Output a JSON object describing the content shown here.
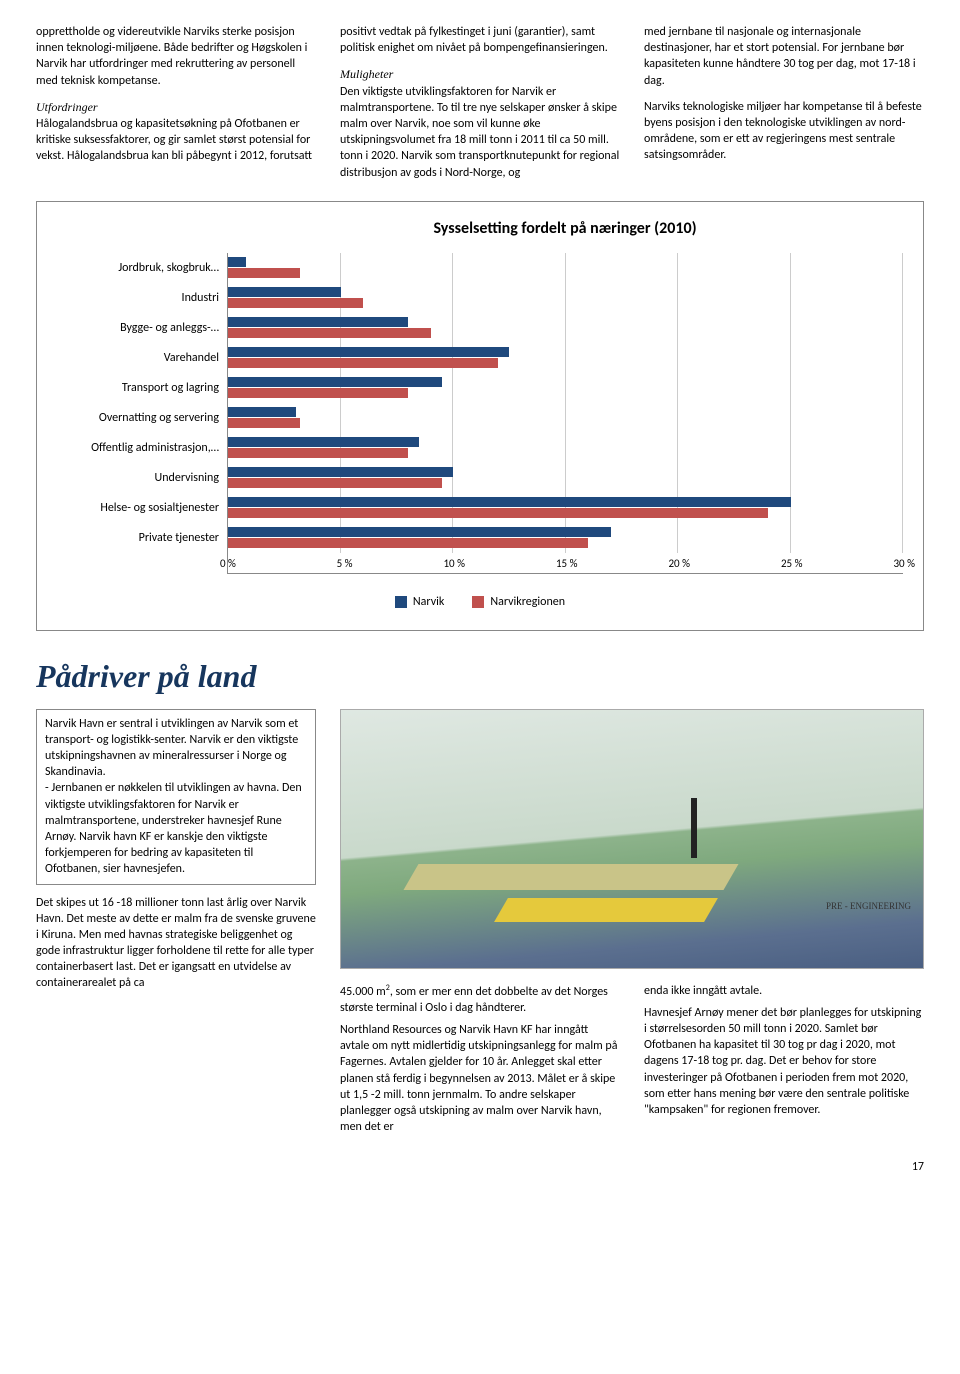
{
  "top_columns": {
    "col1": {
      "p1": "opprettholde og videreutvikle Narviks sterke posisjon innen teknologi-miljøene. Både bedrifter og Høgskolen i Narvik har utfordringer med rekruttering av personell med teknisk kompetanse.",
      "h1": "Utfordringer",
      "p2": "Hålogalandsbrua og kapasitetsøkning på Ofotbanen er kritiske suksessfaktorer, og gir samlet størst potensial for vekst. Hålogalandsbrua kan bli påbegynt i 2012, forutsatt"
    },
    "col2": {
      "p1": "positivt vedtak på fylkestinget i juni (garantier), samt politisk enighet om nivået på bompengefinansieringen.",
      "h1": "Muligheter",
      "p2": "Den viktigste utviklingsfaktoren for Narvik er malmtransportene. To til tre nye selskaper ønsker å skipe malm over Narvik, noe som vil kunne øke utskipningsvolumet fra 18 mill tonn i 2011 til ca 50 mill. tonn i 2020. Narvik som transportknutepunkt for regional distribusjon av gods i Nord-Norge, og"
    },
    "col3": {
      "p1": "med jernbane til nasjonale og internasjonale destinasjoner, har et stort potensial. For jernbane bør kapasiteten kunne håndtere 30 tog per dag, mot 17-18 i dag.",
      "p2": "Narviks teknologiske miljøer har kompetanse til å befeste byens posisjon i den teknologiske utviklingen av nord-områdene, som er ett av regjeringens mest sentrale satsingsområder."
    }
  },
  "chart": {
    "title": "Sysselsetting fordelt på næringer (2010)",
    "categories": [
      "Jordbruk, skogbruk…",
      "Industri",
      "Bygge- og anleggs-…",
      "Varehandel",
      "Transport og lagring",
      "Overnatting og servering",
      "Offentlig administrasjon,…",
      "Undervisning",
      "Helse- og sosialtjenester",
      "Private tjenester"
    ],
    "series": [
      {
        "name": "Narvik",
        "color": "#1f497d",
        "values": [
          0.8,
          5,
          8,
          12.5,
          9.5,
          3,
          8.5,
          10,
          25,
          17
        ]
      },
      {
        "name": "Narvikregionen",
        "color": "#c0504d",
        "values": [
          3.2,
          6,
          9,
          12,
          8,
          3.2,
          8,
          9.5,
          24,
          16
        ]
      }
    ],
    "xmax": 30,
    "xtick_step": 5,
    "xtick_labels": [
      "0 %",
      "5 %",
      "10 %",
      "15 %",
      "20 %",
      "25 %",
      "30 %"
    ]
  },
  "section_title": "Pådriver på land",
  "lower_left": {
    "box": "Narvik Havn er sentral i utviklingen av Narvik som et transport- og logistikk-senter. Narvik er den viktigste utskipningshavnen av mineralressurser i Norge og Skandinavia.\n- Jernbanen er nøkkelen til utviklingen av havna. Den viktigste utviklingsfaktoren for Narvik er malmtransportene, understreker havnesjef Rune Arnøy. Narvik havn KF er kanskje den viktigste forkjemperen for bedring av kapasiteten til Ofotbanen, sier havnesjefen.",
    "p1": "Det skipes ut 16 -18 millioner tonn last årlig over Narvik Havn. Det meste av dette er malm fra de svenske gruvene i Kiruna. Men med havnas strategiske beliggenhet og gode infrastruktur ligger forholdene til rette for alle typer containerbasert last. Det er igangsatt en utvidelse av containerarealet på ca"
  },
  "figure_caption": "PRE - ENGINEERING",
  "lower_cols": {
    "colA": {
      "p1a": "45.000 m",
      "p1sup": "2",
      "p1b": ", som er mer enn det dobbelte av det Norges største terminal i Oslo i dag håndterer.",
      "p2": "Northland Resources og Narvik Havn KF har inngått avtale om nytt midlertidig utskipningsanlegg for malm på Fagernes. Avtalen gjelder for 10 år. Anlegget skal etter planen stå ferdig i begynnelsen av 2013. Målet er å skipe ut 1,5 -2 mill. tonn jernmalm. To andre selskaper planlegger også utskipning av malm over Narvik havn, men det er"
    },
    "colB": {
      "p1": "enda ikke inngått avtale.",
      "p2": "Havnesjef Arnøy mener det bør planlegges for utskipning i størrelsesorden 50 mill tonn i 2020. Samlet bør Ofotbanen ha kapasitet til 30 tog pr dag i 2020, mot dagens 17-18 tog pr. dag. Det er behov for store investeringer på Ofotbanen i perioden frem mot 2020, som etter hans mening bør være den sentrale politiske \"kampsaken\" for regionen fremover."
    }
  },
  "page_number": "17"
}
